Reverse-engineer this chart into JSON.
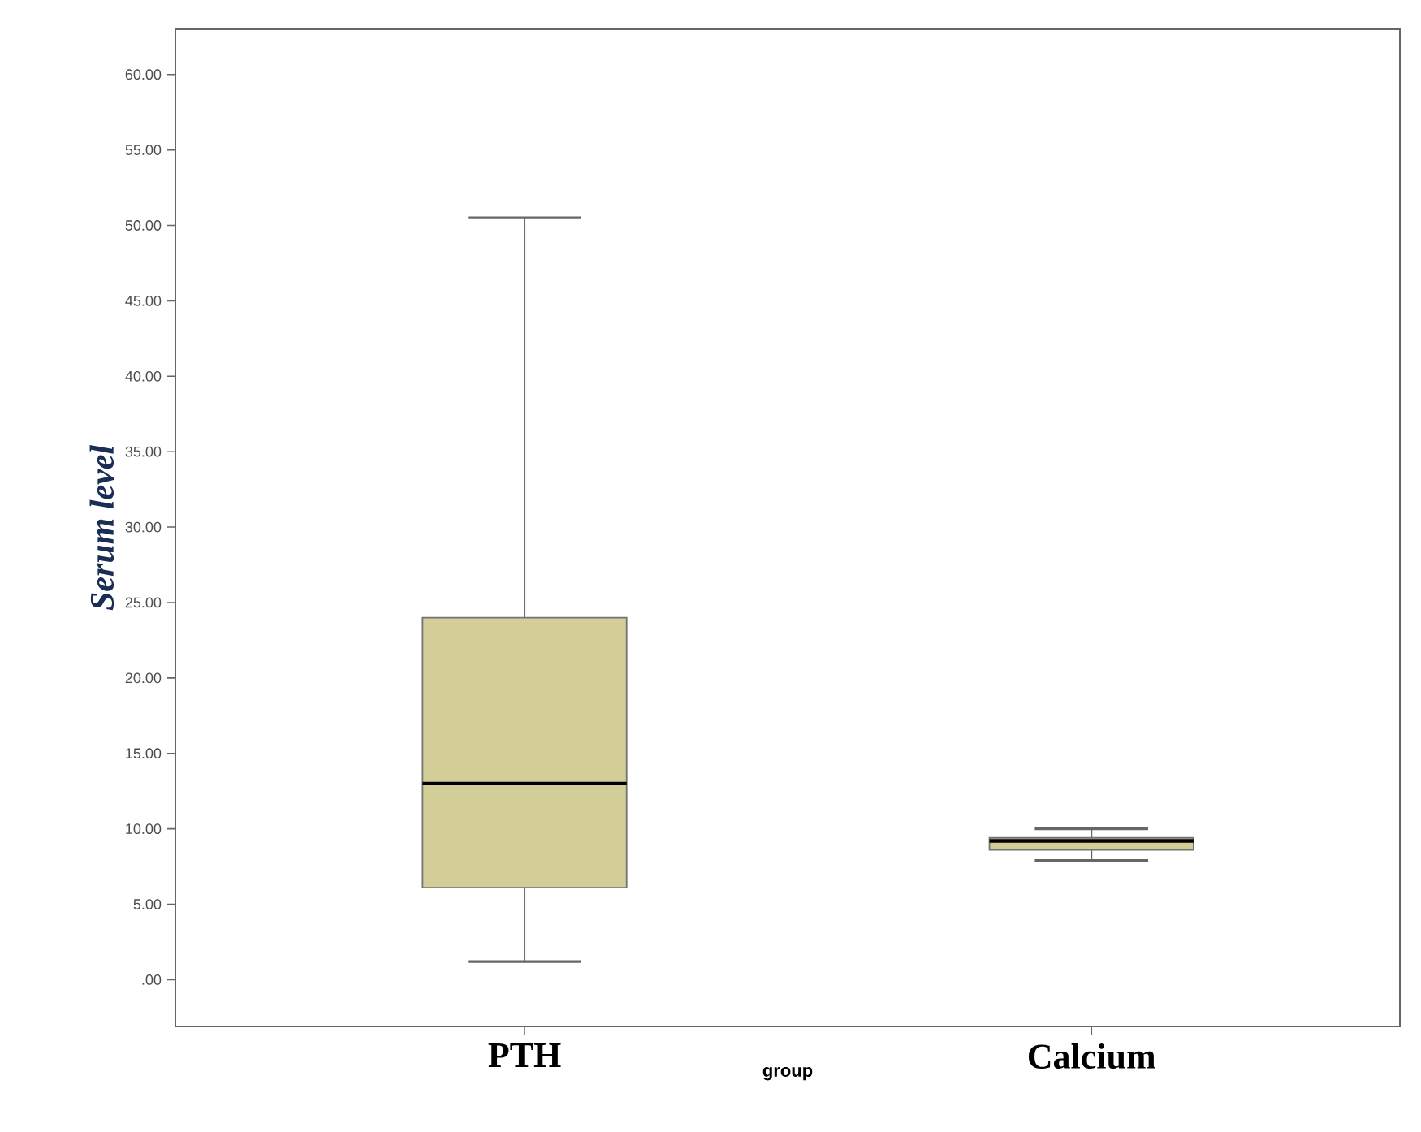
{
  "chart_data": {
    "type": "box",
    "categories": [
      "PTH",
      "Calcium"
    ],
    "xlabel": "group",
    "ylabel": "Serum level",
    "ylim": [
      -3.1,
      63.0
    ],
    "yticks": [
      {
        "value": 0,
        "label": ".00"
      },
      {
        "value": 5,
        "label": "5.00"
      },
      {
        "value": 10,
        "label": "10.00"
      },
      {
        "value": 15,
        "label": "15.00"
      },
      {
        "value": 20,
        "label": "20.00"
      },
      {
        "value": 25,
        "label": "25.00"
      },
      {
        "value": 30,
        "label": "30.00"
      },
      {
        "value": 35,
        "label": "35.00"
      },
      {
        "value": 40,
        "label": "40.00"
      },
      {
        "value": 45,
        "label": "45.00"
      },
      {
        "value": 50,
        "label": "50.00"
      },
      {
        "value": 55,
        "label": "55.00"
      },
      {
        "value": 60,
        "label": "60.00"
      }
    ],
    "series": [
      {
        "color": "#d3cd97",
        "boxes": [
          {
            "low": 1.2,
            "q1": 6.1,
            "median": 13.0,
            "q3": 24.0,
            "high": 50.5
          },
          {
            "low": 7.9,
            "q1": 8.6,
            "median": 9.2,
            "q3": 9.4,
            "high": 10.0
          }
        ]
      }
    ]
  }
}
